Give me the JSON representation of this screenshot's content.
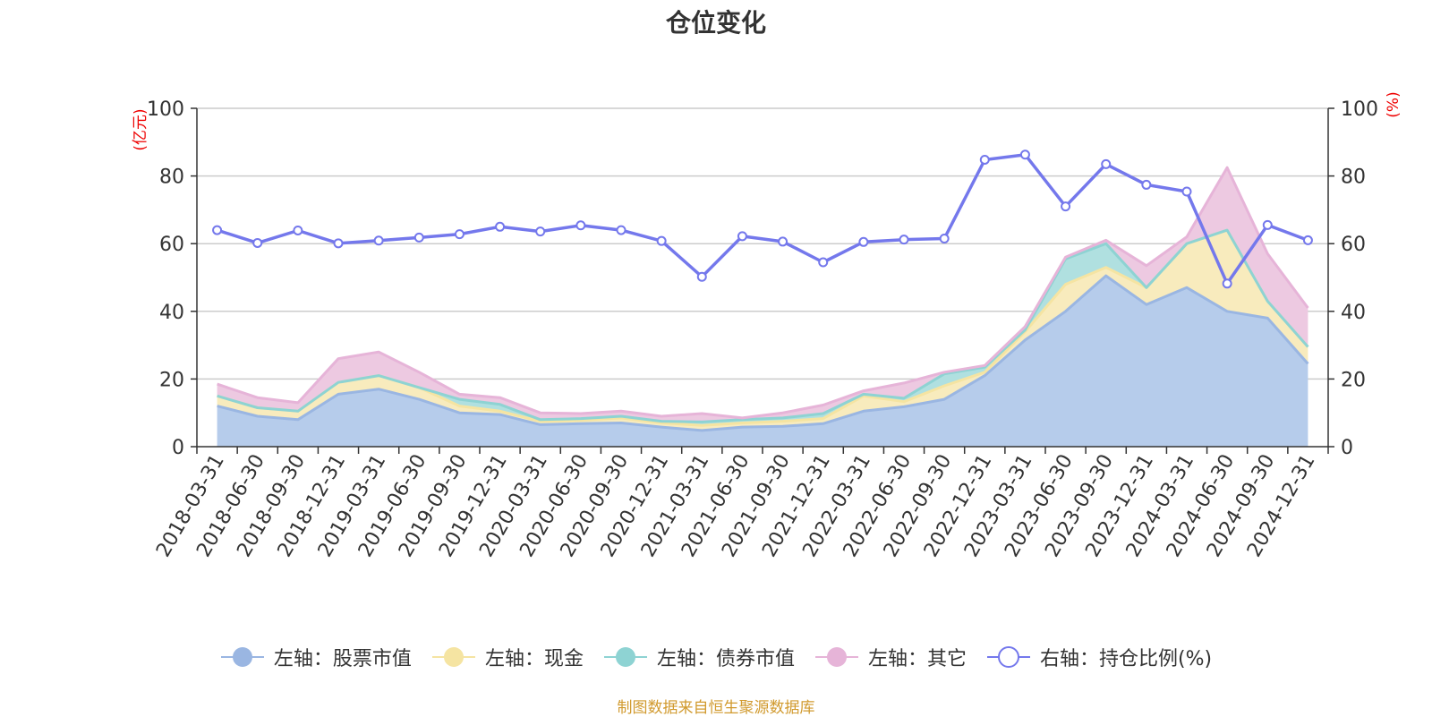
{
  "chart_data": {
    "type": "area",
    "title": "仓位变化",
    "categories": [
      "2018-03-31",
      "2018-06-30",
      "2018-09-30",
      "2018-12-31",
      "2019-03-31",
      "2019-06-30",
      "2019-09-30",
      "2019-12-31",
      "2020-03-31",
      "2020-06-30",
      "2020-09-30",
      "2020-12-31",
      "2021-03-31",
      "2021-06-30",
      "2021-09-30",
      "2021-12-31",
      "2022-03-31",
      "2022-06-30",
      "2022-09-30",
      "2022-12-31",
      "2023-03-31",
      "2023-06-30",
      "2023-09-30",
      "2023-12-31",
      "2024-03-31",
      "2024-06-30",
      "2024-09-30",
      "2024-12-31"
    ],
    "left_axis": {
      "label": "(亿元)",
      "ylim": [
        0,
        100
      ],
      "ticks": [
        "0",
        "20",
        "40",
        "60",
        "80",
        "100"
      ]
    },
    "right_axis": {
      "label": "(%)",
      "ylim": [
        0,
        100
      ],
      "ticks": [
        "0",
        "20",
        "40",
        "60",
        "80",
        "100"
      ]
    },
    "series": [
      {
        "name": "左轴：股票市值",
        "axis": "left",
        "stack": true,
        "color": "#9ab6e2",
        "fill": "#b6cceb",
        "values": [
          12.0,
          9.0,
          8.0,
          15.5,
          17.0,
          14.0,
          10.0,
          9.5,
          6.5,
          6.8,
          7.0,
          5.8,
          4.8,
          5.8,
          6.0,
          6.8,
          10.5,
          11.8,
          14.0,
          21.0,
          31.5,
          40.0,
          50.5,
          42.0,
          47.0,
          40.0,
          38.0,
          24.5
        ]
      },
      {
        "name": "左轴：现金",
        "axis": "left",
        "stack": true,
        "color": "#f5e4a2",
        "fill": "#f8ebbd",
        "values": [
          3.0,
          2.5,
          2.5,
          3.5,
          4.0,
          3.5,
          2.0,
          1.0,
          1.0,
          1.0,
          1.5,
          1.2,
          1.5,
          1.2,
          1.5,
          1.5,
          4.5,
          1.5,
          4.0,
          1.0,
          2.5,
          8.0,
          2.5,
          5.0,
          13.0,
          24.0,
          5.0,
          5.0
        ]
      },
      {
        "name": "左轴：债券市值",
        "axis": "left",
        "stack": true,
        "color": "#8ed3d3",
        "fill": "#b0e0e0",
        "values": [
          0,
          0,
          0,
          0,
          0,
          0,
          2.0,
          2.0,
          0.5,
          0.5,
          0.5,
          0.5,
          1.0,
          1.0,
          1.0,
          1.5,
          0.5,
          1.0,
          3.5,
          1.5,
          0.5,
          7.5,
          7.0,
          0,
          0,
          0,
          0,
          0
        ]
      },
      {
        "name": "左轴：其它",
        "axis": "left",
        "stack": true,
        "color": "#e6b4d8",
        "fill": "#edc9e1",
        "values": [
          3.5,
          3.0,
          2.5,
          7.0,
          7.0,
          4.5,
          1.5,
          2.0,
          2.0,
          1.5,
          1.5,
          1.5,
          2.5,
          0.5,
          1.5,
          2.5,
          1.0,
          4.5,
          0.5,
          0.5,
          1.0,
          0.5,
          1.0,
          6.5,
          2.0,
          18.5,
          14.0,
          11.5
        ]
      },
      {
        "name": "右轴：持仓比例(%)",
        "axis": "right",
        "stack": false,
        "color": "#7478ec",
        "values": [
          64.0,
          60.2,
          63.9,
          60.1,
          60.9,
          61.8,
          62.8,
          65.0,
          63.6,
          65.4,
          64.0,
          60.8,
          50.2,
          62.2,
          60.6,
          54.5,
          60.5,
          61.2,
          61.5,
          84.8,
          86.3,
          71.0,
          83.5,
          77.4,
          75.4,
          48.2,
          65.5,
          61.0
        ]
      }
    ]
  },
  "source_note": "制图数据来自恒生聚源数据库",
  "colors": {
    "title": "#333333",
    "axis_unit": "#ee0000",
    "source_note": "#d19a2e",
    "grid": "#cccccc",
    "axis": "#333333",
    "text": "#333333"
  }
}
